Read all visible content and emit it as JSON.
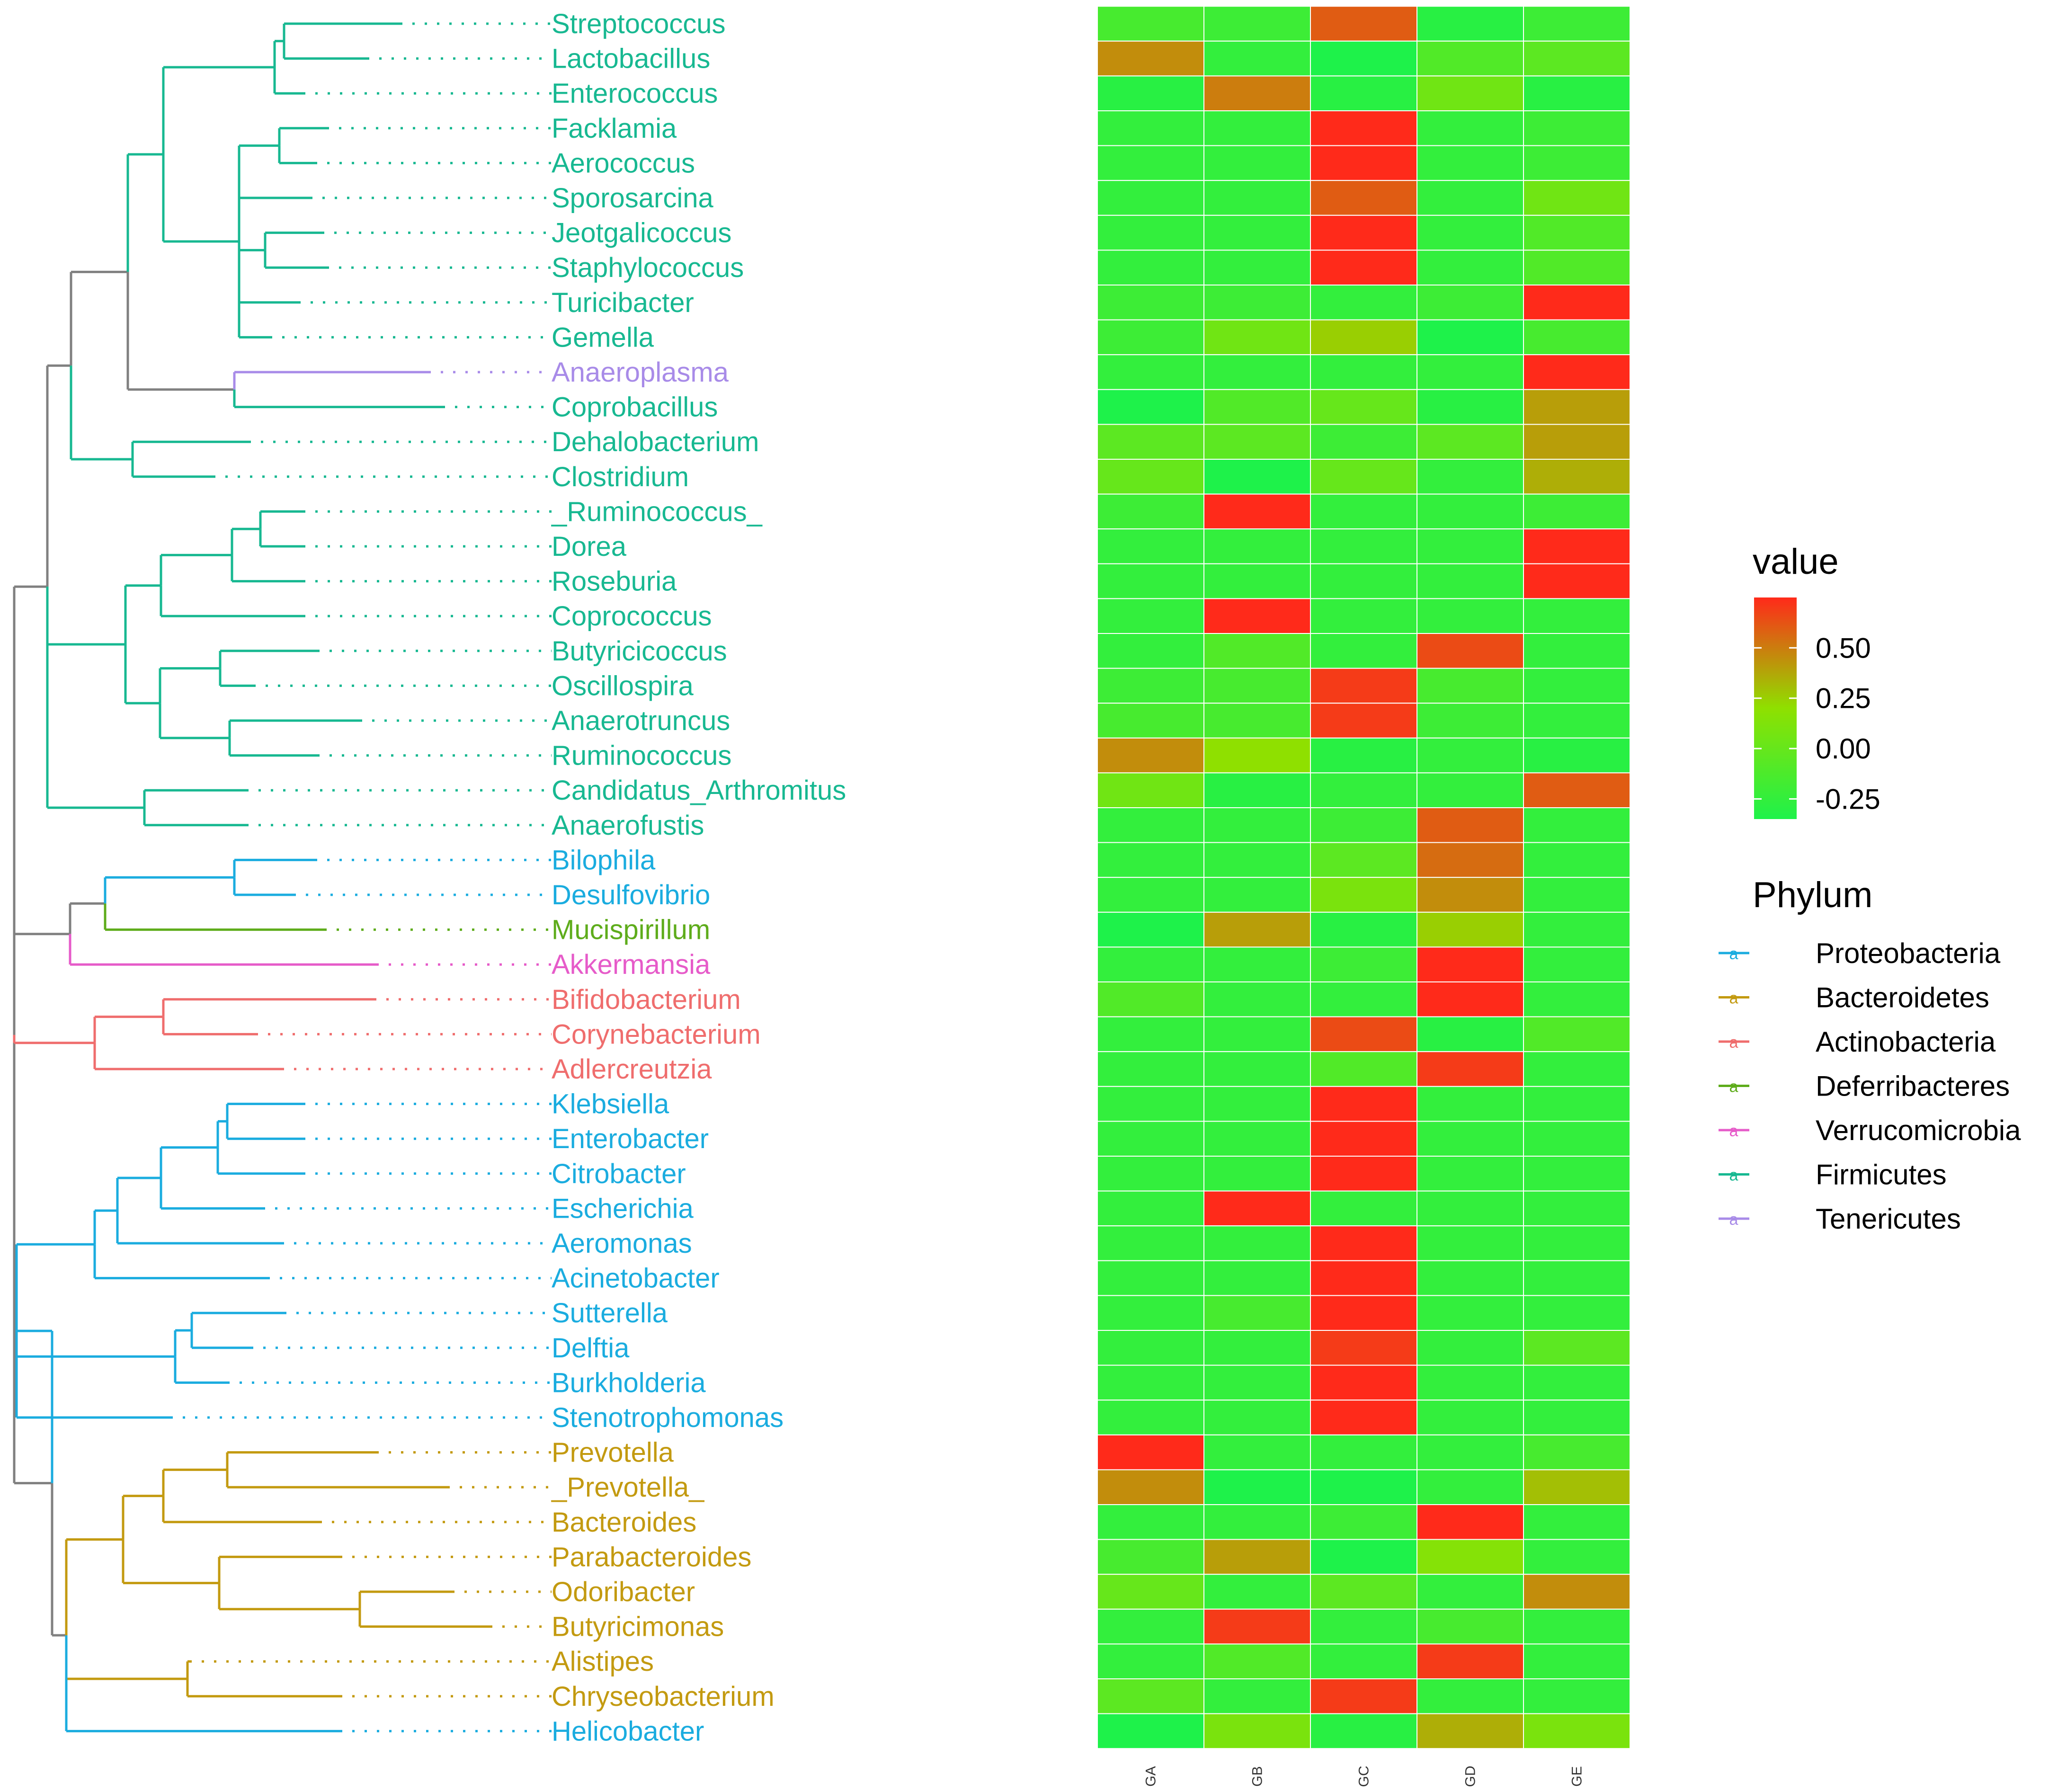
{
  "chart_data": {
    "type": "heatmap",
    "columns": [
      "GA",
      "GB",
      "GC",
      "GD",
      "GE"
    ],
    "rows": [
      {
        "label": "Streptococcus",
        "phylum": "Firmicutes",
        "values": [
          -0.15,
          -0.2,
          0.6,
          -0.3,
          -0.2
        ]
      },
      {
        "label": "Lactobacillus",
        "phylum": "Firmicutes",
        "values": [
          0.45,
          -0.25,
          -0.35,
          -0.1,
          -0.05
        ]
      },
      {
        "label": "Enterococcus",
        "phylum": "Firmicutes",
        "values": [
          -0.3,
          0.5,
          -0.3,
          0.05,
          -0.3
        ]
      },
      {
        "label": "Facklamia",
        "phylum": "Firmicutes",
        "values": [
          -0.25,
          -0.25,
          0.8,
          -0.25,
          -0.2
        ]
      },
      {
        "label": "Aerococcus",
        "phylum": "Firmicutes",
        "values": [
          -0.25,
          -0.25,
          0.8,
          -0.25,
          -0.2
        ]
      },
      {
        "label": "Sporosarcina",
        "phylum": "Firmicutes",
        "values": [
          -0.25,
          -0.25,
          0.6,
          -0.25,
          0.05
        ]
      },
      {
        "label": "Jeotgalicoccus",
        "phylum": "Firmicutes",
        "values": [
          -0.25,
          -0.25,
          0.75,
          -0.25,
          -0.1
        ]
      },
      {
        "label": "Staphylococcus",
        "phylum": "Firmicutes",
        "values": [
          -0.25,
          -0.25,
          0.75,
          -0.25,
          -0.1
        ]
      },
      {
        "label": "Turicibacter",
        "phylum": "Firmicutes",
        "values": [
          -0.2,
          -0.2,
          -0.25,
          -0.2,
          0.75
        ]
      },
      {
        "label": "Gemella",
        "phylum": "Firmicutes",
        "values": [
          -0.2,
          0.05,
          0.25,
          -0.45,
          -0.15
        ]
      },
      {
        "label": "Anaeroplasma",
        "phylum": "Tenericutes",
        "values": [
          -0.25,
          -0.25,
          -0.25,
          -0.25,
          0.8
        ]
      },
      {
        "label": "Coprobacillus",
        "phylum": "Firmicutes",
        "values": [
          -0.4,
          -0.1,
          0.0,
          -0.3,
          0.4
        ]
      },
      {
        "label": "Dehalobacterium",
        "phylum": "Firmicutes",
        "values": [
          -0.05,
          -0.05,
          -0.2,
          -0.05,
          0.4
        ]
      },
      {
        "label": "Clostridium",
        "phylum": "Firmicutes",
        "values": [
          0.0,
          -0.35,
          0.0,
          -0.25,
          0.35
        ]
      },
      {
        "label": "_Ruminococcus_",
        "phylum": "Firmicutes",
        "values": [
          -0.2,
          0.8,
          -0.25,
          -0.25,
          -0.2
        ]
      },
      {
        "label": "Dorea",
        "phylum": "Firmicutes",
        "values": [
          -0.25,
          -0.25,
          -0.25,
          -0.25,
          0.8
        ]
      },
      {
        "label": "Roseburia",
        "phylum": "Firmicutes",
        "values": [
          -0.25,
          -0.25,
          -0.25,
          -0.25,
          0.8
        ]
      },
      {
        "label": "Coprococcus",
        "phylum": "Firmicutes",
        "values": [
          -0.25,
          0.8,
          -0.25,
          -0.25,
          -0.25
        ]
      },
      {
        "label": "Butyricicoccus",
        "phylum": "Firmicutes",
        "values": [
          -0.25,
          -0.1,
          -0.25,
          0.65,
          -0.25
        ]
      },
      {
        "label": "Oscillospira",
        "phylum": "Firmicutes",
        "values": [
          -0.2,
          -0.15,
          0.7,
          -0.15,
          -0.25
        ]
      },
      {
        "label": "Anaerotruncus",
        "phylum": "Firmicutes",
        "values": [
          -0.15,
          -0.15,
          0.7,
          -0.2,
          -0.25
        ]
      },
      {
        "label": "Ruminococcus",
        "phylum": "Firmicutes",
        "values": [
          0.45,
          0.2,
          -0.3,
          -0.25,
          -0.3
        ]
      },
      {
        "label": "Candidatus_Arthromitus",
        "phylum": "Firmicutes",
        "values": [
          0.05,
          -0.3,
          -0.25,
          -0.25,
          0.6
        ]
      },
      {
        "label": "Anaerofustis",
        "phylum": "Firmicutes",
        "values": [
          -0.25,
          -0.25,
          -0.2,
          0.6,
          -0.25
        ]
      },
      {
        "label": "Bilophila",
        "phylum": "Proteobacteria",
        "values": [
          -0.25,
          -0.25,
          -0.05,
          0.55,
          -0.25
        ]
      },
      {
        "label": "Desulfovibrio",
        "phylum": "Proteobacteria",
        "values": [
          -0.25,
          -0.25,
          0.1,
          0.45,
          -0.25
        ]
      },
      {
        "label": "Mucispirillum",
        "phylum": "Deferribacteres",
        "values": [
          -0.35,
          0.4,
          -0.3,
          0.25,
          -0.25
        ]
      },
      {
        "label": "Akkermansia",
        "phylum": "Verrucomicrobia",
        "values": [
          -0.25,
          -0.25,
          -0.2,
          0.75,
          -0.25
        ]
      },
      {
        "label": "Bifidobacterium",
        "phylum": "Actinobacteria",
        "values": [
          -0.1,
          -0.25,
          -0.25,
          0.75,
          -0.25
        ]
      },
      {
        "label": "Corynebacterium",
        "phylum": "Actinobacteria",
        "values": [
          -0.25,
          -0.25,
          0.65,
          -0.3,
          -0.1
        ]
      },
      {
        "label": "Adlercreutzia",
        "phylum": "Actinobacteria",
        "values": [
          -0.25,
          -0.25,
          -0.1,
          0.7,
          -0.25
        ]
      },
      {
        "label": "Klebsiella",
        "phylum": "Proteobacteria",
        "values": [
          -0.25,
          -0.25,
          0.8,
          -0.25,
          -0.25
        ]
      },
      {
        "label": "Enterobacter",
        "phylum": "Proteobacteria",
        "values": [
          -0.25,
          -0.25,
          0.75,
          -0.25,
          -0.25
        ]
      },
      {
        "label": "Citrobacter",
        "phylum": "Proteobacteria",
        "values": [
          -0.25,
          -0.25,
          0.75,
          -0.25,
          -0.25
        ]
      },
      {
        "label": "Escherichia",
        "phylum": "Proteobacteria",
        "values": [
          -0.25,
          0.8,
          -0.25,
          -0.25,
          -0.25
        ]
      },
      {
        "label": "Aeromonas",
        "phylum": "Proteobacteria",
        "values": [
          -0.25,
          -0.25,
          0.8,
          -0.25,
          -0.25
        ]
      },
      {
        "label": "Acinetobacter",
        "phylum": "Proteobacteria",
        "values": [
          -0.25,
          -0.25,
          0.8,
          -0.25,
          -0.25
        ]
      },
      {
        "label": "Sutterella",
        "phylum": "Proteobacteria",
        "values": [
          -0.25,
          -0.15,
          0.75,
          -0.25,
          -0.25
        ]
      },
      {
        "label": "Delftia",
        "phylum": "Proteobacteria",
        "values": [
          -0.25,
          -0.25,
          0.7,
          -0.25,
          -0.05
        ]
      },
      {
        "label": "Burkholderia",
        "phylum": "Proteobacteria",
        "values": [
          -0.25,
          -0.25,
          0.8,
          -0.25,
          -0.25
        ]
      },
      {
        "label": "Stenotrophomonas",
        "phylum": "Proteobacteria",
        "values": [
          -0.25,
          -0.25,
          0.8,
          -0.25,
          -0.25
        ]
      },
      {
        "label": "Prevotella",
        "phylum": "Bacteroidetes",
        "values": [
          0.8,
          -0.25,
          -0.25,
          -0.25,
          -0.15
        ]
      },
      {
        "label": "_Prevotella_",
        "phylum": "Bacteroidetes",
        "values": [
          0.45,
          -0.35,
          -0.35,
          -0.25,
          0.3
        ]
      },
      {
        "label": "Bacteroides",
        "phylum": "Bacteroidetes",
        "values": [
          -0.25,
          -0.25,
          -0.2,
          0.75,
          -0.25
        ]
      },
      {
        "label": "Parabacteroides",
        "phylum": "Bacteroidetes",
        "values": [
          -0.15,
          0.4,
          -0.35,
          0.15,
          -0.25
        ]
      },
      {
        "label": "Odoribacter",
        "phylum": "Bacteroidetes",
        "values": [
          0.0,
          -0.25,
          -0.05,
          -0.25,
          0.45
        ]
      },
      {
        "label": "Butyricimonas",
        "phylum": "Bacteroidetes",
        "values": [
          -0.25,
          0.7,
          -0.25,
          -0.15,
          -0.25
        ]
      },
      {
        "label": "Alistipes",
        "phylum": "Bacteroidetes",
        "values": [
          -0.25,
          -0.1,
          -0.25,
          0.7,
          -0.25
        ]
      },
      {
        "label": "Chryseobacterium",
        "phylum": "Bacteroidetes",
        "values": [
          -0.05,
          -0.25,
          0.7,
          -0.25,
          -0.25
        ]
      },
      {
        "label": "Helicobacter",
        "phylum": "Proteobacteria",
        "values": [
          -0.4,
          0.1,
          -0.3,
          0.35,
          0.1
        ]
      }
    ],
    "color_scale": {
      "min": -0.35,
      "max": 0.75,
      "low": "#1ef24a",
      "mid": "#8fe000",
      "high": "#ff2a1a"
    },
    "legend_value": {
      "title": "value",
      "ticks": [
        "0.50",
        "0.25",
        "0.00",
        "-0.25"
      ],
      "tick_values": [
        0.5,
        0.25,
        0.0,
        -0.25
      ]
    },
    "legend_phylum": {
      "title": "Phylum",
      "entries": [
        {
          "label": "Proteobacteria",
          "color": "#1aacdf"
        },
        {
          "label": "Bacteroidetes",
          "color": "#c39a10"
        },
        {
          "label": "Actinobacteria",
          "color": "#ef6d6d"
        },
        {
          "label": "Deferribacteres",
          "color": "#5eac1b"
        },
        {
          "label": "Verrucomicrobia",
          "color": "#e65bc9"
        },
        {
          "label": "Firmicutes",
          "color": "#17b891"
        },
        {
          "label": "Tenericutes",
          "color": "#a88be8"
        }
      ]
    },
    "tree_color": "#808080"
  }
}
